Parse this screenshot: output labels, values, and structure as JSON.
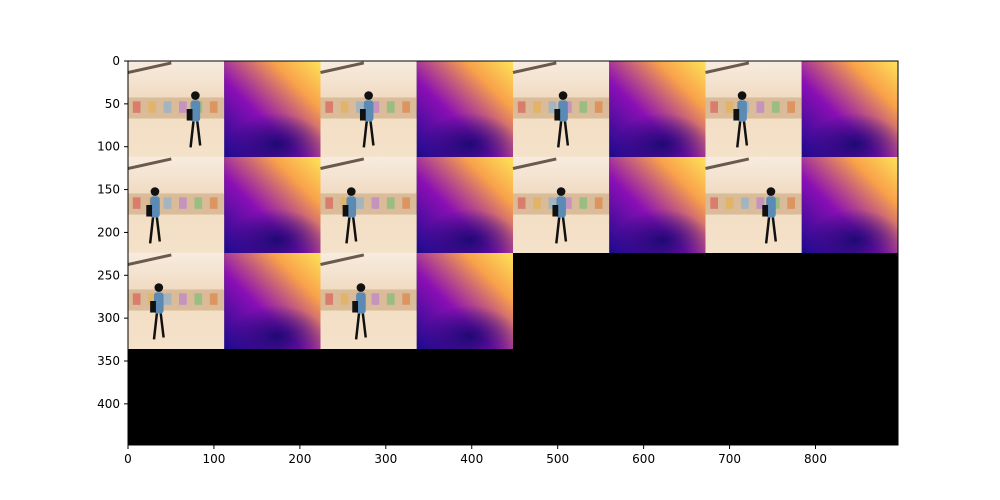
{
  "chart_data": {
    "type": "image-grid",
    "title": "",
    "xlabel": "",
    "ylabel": "",
    "xlim": [
      0,
      896
    ],
    "ylim": [
      448,
      0
    ],
    "xticks": [
      0,
      100,
      200,
      300,
      400,
      500,
      600,
      700,
      800
    ],
    "yticks": [
      0,
      50,
      100,
      150,
      200,
      250,
      300,
      350,
      400
    ],
    "tile_size": 112,
    "grid": {
      "columns": 8,
      "rows": 4
    },
    "background": "#000000",
    "tiles": [
      {
        "row": 0,
        "col": 0,
        "kind": "rgb",
        "person_x": 0.7
      },
      {
        "row": 0,
        "col": 1,
        "kind": "depth"
      },
      {
        "row": 0,
        "col": 2,
        "kind": "rgb",
        "person_x": 0.5
      },
      {
        "row": 0,
        "col": 3,
        "kind": "depth"
      },
      {
        "row": 0,
        "col": 4,
        "kind": "rgb",
        "person_x": 0.52
      },
      {
        "row": 0,
        "col": 5,
        "kind": "depth"
      },
      {
        "row": 0,
        "col": 6,
        "kind": "rgb",
        "person_x": 0.38
      },
      {
        "row": 0,
        "col": 7,
        "kind": "depth"
      },
      {
        "row": 1,
        "col": 0,
        "kind": "rgb",
        "person_x": 0.28
      },
      {
        "row": 1,
        "col": 1,
        "kind": "depth"
      },
      {
        "row": 1,
        "col": 2,
        "kind": "rgb",
        "person_x": 0.32
      },
      {
        "row": 1,
        "col": 3,
        "kind": "depth"
      },
      {
        "row": 1,
        "col": 4,
        "kind": "rgb",
        "person_x": 0.5
      },
      {
        "row": 1,
        "col": 5,
        "kind": "depth"
      },
      {
        "row": 1,
        "col": 6,
        "kind": "rgb",
        "person_x": 0.68
      },
      {
        "row": 1,
        "col": 7,
        "kind": "depth"
      },
      {
        "row": 2,
        "col": 0,
        "kind": "rgb",
        "person_x": 0.32
      },
      {
        "row": 2,
        "col": 1,
        "kind": "depth"
      },
      {
        "row": 2,
        "col": 2,
        "kind": "rgb",
        "person_x": 0.42
      },
      {
        "row": 2,
        "col": 3,
        "kind": "depth"
      }
    ],
    "colors": {
      "depth_near": "#1a0a8c",
      "depth_mid": "#8a0fb5",
      "depth_far": "#f9a24a",
      "depth_farthest": "#fde35a",
      "rgb_floor": "#f3dfc6",
      "rgb_shelf": "#c9a27a",
      "person_coat": "#5b8bb5",
      "person_dark": "#111111"
    }
  }
}
